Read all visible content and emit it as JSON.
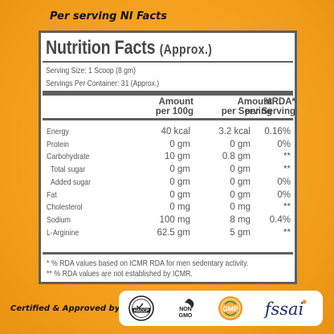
{
  "header": {
    "title": "Per serving NI Facts"
  },
  "panel": {
    "title": "Nutrition Facts",
    "title_suffix": "(Approx.)",
    "serving_size": "Serving Size: 1 Scoop (8 gm)",
    "servings_per_container": "Servings Per Container: 31 (Approx.)",
    "columns": {
      "per100_line1": "Amount",
      "per100_line2": "per 100g",
      "serving_line1": "Amount",
      "serving_line2": "per Serving",
      "rda_line1": "%RDA*",
      "rda_line2": "per Serving"
    },
    "rows": [
      {
        "name": "Energy",
        "per100": "40 kcal",
        "serving": "3.2 kcal",
        "rda": "0.16%"
      },
      {
        "name": "Protein",
        "per100": "0 gm",
        "serving": "0 gm",
        "rda": "0%"
      },
      {
        "name": "Carbohydrate",
        "per100": "10 gm",
        "serving": "0.8 gm",
        "rda": "**"
      },
      {
        "name": "Total sugar",
        "per100": "0 gm",
        "serving": "0 gm",
        "rda": "**"
      },
      {
        "name": "Added sugar",
        "per100": "0 gm",
        "serving": "0 gm",
        "rda": "0%"
      },
      {
        "name": "Fat",
        "per100": "0 gm",
        "serving": "0 gm",
        "rda": "0%"
      },
      {
        "name": "Cholesterol",
        "per100": "0 mg",
        "serving": "0 mg",
        "rda": "**"
      },
      {
        "name": "Sodium",
        "per100": "100 mg",
        "serving": "8 mg",
        "rda": "0.4%"
      },
      {
        "name": "L-Arginine",
        "per100": "62.5 gm",
        "serving": "5 gm",
        "rda": "**"
      }
    ],
    "footnote1": "* % RDA values based on ICMR RDA for men sedentary activity.",
    "footnote2": "** % RDA values are not established by ICMR."
  },
  "certifications": {
    "label": "Certified & Approved by -",
    "logos": [
      {
        "icon": "haccp-logo",
        "text": "HACCP"
      },
      {
        "icon": "non-gmo-logo",
        "text_top": "NON",
        "text_bottom": "GMO"
      },
      {
        "icon": "gmp-logo",
        "text": "GMP"
      },
      {
        "icon": "fssai-logo",
        "text": "fssai"
      }
    ]
  },
  "colors": {
    "background": "#f4a11f",
    "panel_border": "#5f5f5f",
    "text_gray": "#555555",
    "gmp_orange": "#f29a1e",
    "fssai_blue": "#1c2d6b"
  }
}
